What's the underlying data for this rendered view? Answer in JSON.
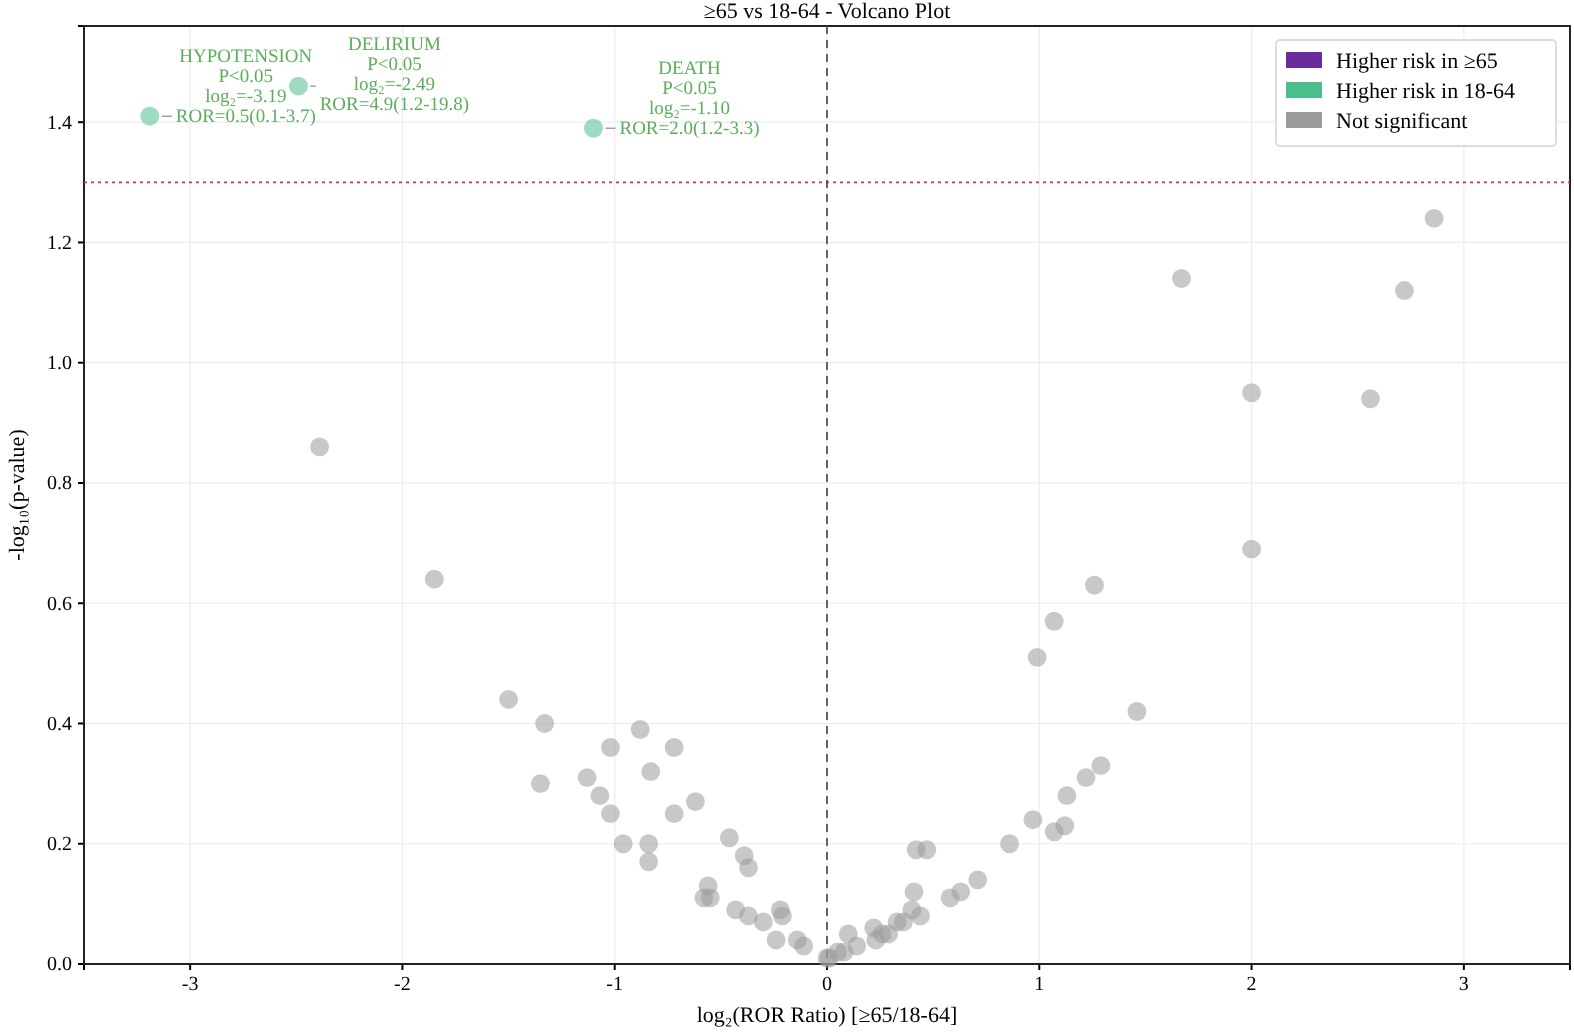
{
  "chart_data": {
    "type": "scatter",
    "title": "≥65 vs 18-64 - Volcano Plot",
    "xlabel": "log₂(ROR Ratio) [≥65/18-64]",
    "ylabel": "-log₁₀(p-value)",
    "xlim": [
      -3.5,
      3.5
    ],
    "ylim": [
      0,
      1.56
    ],
    "xticks": [
      -3,
      -2,
      -1,
      0,
      1,
      2,
      3
    ],
    "yticks": [
      {
        "value": 0,
        "label": "0.0"
      },
      {
        "value": 0.2,
        "label": "0.2"
      },
      {
        "value": 0.4,
        "label": "0.4"
      },
      {
        "value": 0.6,
        "label": "0.6"
      },
      {
        "value": 0.8,
        "label": "0.8"
      },
      {
        "value": 1,
        "label": "1.0"
      },
      {
        "value": 1.2,
        "label": "1.2"
      },
      {
        "value": 1.4,
        "label": "1.4"
      }
    ],
    "grid": true,
    "legend": "top right",
    "marker": "circle",
    "series": [
      {
        "name": "Higher risk in ≥65",
        "color": "#6a2c9c"
      },
      {
        "name": "Higher risk in 18-64",
        "color": "#4cc08c",
        "x": [
          -3.19,
          -2.49,
          -1.1
        ],
        "values": [
          1.41,
          1.46,
          1.39
        ]
      },
      {
        "name": "Not significant",
        "color": "#9a9a9a",
        "x": [
          -2.39,
          -1.85,
          -1.5,
          -1.33,
          -0.88,
          -1.02,
          -0.72,
          -0.83,
          -1.35,
          -1.13,
          -1.07,
          -0.62,
          -1.02,
          -0.72,
          -0.96,
          -0.84,
          -0.84,
          -0.46,
          -0.39,
          -0.37,
          -0.56,
          -0.58,
          -0.55,
          -0.43,
          -0.37,
          -0.22,
          -0.21,
          -0.3,
          -0.24,
          -0.14,
          -0.11,
          0.0,
          2.86,
          1.67,
          2.72,
          2.0,
          2.56,
          2.0,
          1.26,
          1.07,
          0.99,
          1.46,
          1.29,
          1.22,
          1.13,
          0.97,
          1.12,
          1.07,
          0.86,
          0.42,
          0.47,
          0.71,
          0.63,
          0.58,
          0.41,
          0.44,
          0.4,
          0.36,
          0.33,
          0.29,
          0.26,
          0.22,
          0.23,
          0.1,
          0.14,
          0.05,
          0.08,
          0.01
        ],
        "values": [
          0.86,
          0.64,
          0.44,
          0.4,
          0.39,
          0.36,
          0.36,
          0.32,
          0.3,
          0.31,
          0.28,
          0.27,
          0.25,
          0.25,
          0.2,
          0.2,
          0.17,
          0.21,
          0.18,
          0.16,
          0.13,
          0.11,
          0.11,
          0.09,
          0.08,
          0.09,
          0.08,
          0.07,
          0.04,
          0.04,
          0.03,
          0.01,
          1.24,
          1.14,
          1.12,
          0.95,
          0.94,
          0.69,
          0.63,
          0.57,
          0.51,
          0.42,
          0.33,
          0.31,
          0.28,
          0.24,
          0.23,
          0.22,
          0.2,
          0.19,
          0.19,
          0.14,
          0.12,
          0.11,
          0.12,
          0.08,
          0.09,
          0.07,
          0.07,
          0.05,
          0.05,
          0.06,
          0.04,
          0.05,
          0.03,
          0.02,
          0.02,
          0.01
        ]
      }
    ],
    "ref_lines": [
      {
        "axis": "y",
        "value": 1.3,
        "color": "#e03030",
        "line_style": "dotted"
      },
      {
        "axis": "x",
        "value": 0,
        "color": "#555555",
        "line_style": "dashed"
      }
    ],
    "annotations": [
      {
        "text": "HYPOTENSION\nP<0.05\nlog₂=-3.19\nROR=0.5(0.1-3.7)",
        "x": -3.19,
        "y": 1.41
      },
      {
        "text": "DELIRIUM\nP<0.05\nlog₂=-2.49\nROR=4.9(1.2-19.8)",
        "x": -2.49,
        "y": 1.46
      },
      {
        "text": "DEATH\nP<0.05\nlog₂=-1.10\nROR=2.0(1.2-3.3)",
        "x": -1.1,
        "y": 1.39
      }
    ]
  }
}
